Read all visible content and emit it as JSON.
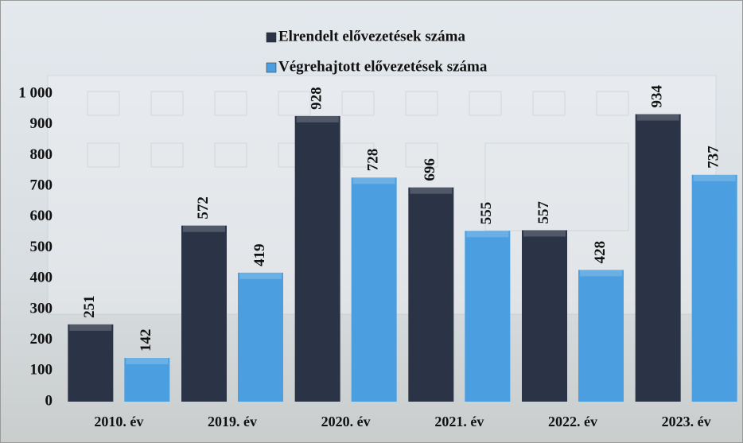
{
  "chart_data": {
    "type": "bar",
    "categories": [
      "2010. év",
      "2019. év",
      "2020. év",
      "2021. év",
      "2022. év",
      "2023. év"
    ],
    "series": [
      {
        "name": "Elrendelt elővezetések száma",
        "color": "#2b3447",
        "values": [
          251,
          572,
          928,
          696,
          557,
          934
        ]
      },
      {
        "name": "Végrehajtott elővezetések száma",
        "color": "#4b9fe0",
        "values": [
          142,
          419,
          728,
          555,
          428,
          737
        ]
      }
    ],
    "ylim": [
      0,
      1000
    ],
    "yticks": [
      0,
      100,
      200,
      300,
      400,
      500,
      600,
      700,
      800,
      900,
      {
        "value": 1000,
        "label": "1 000"
      }
    ],
    "legend": "top"
  }
}
